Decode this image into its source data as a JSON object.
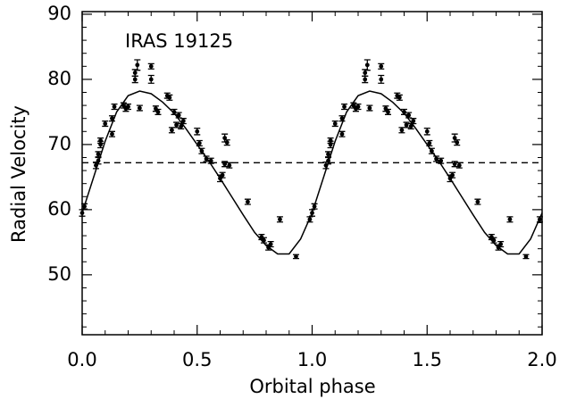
{
  "chart_data": {
    "type": "scatter",
    "annotation": "IRAS 19125",
    "xlabel": "Orbital phase",
    "ylabel": "Radial Velocity",
    "xlim": [
      0,
      2
    ],
    "ylim": [
      40.8,
      90.4
    ],
    "xticks": [
      {
        "value": 0,
        "label": "0.0"
      },
      {
        "value": 0.5,
        "label": "0.5"
      },
      {
        "value": 1,
        "label": "1.0"
      },
      {
        "value": 1.5,
        "label": "1.5"
      },
      {
        "value": 2,
        "label": "2.0"
      }
    ],
    "yticks": [
      50,
      60,
      70,
      80,
      90
    ],
    "xminorticks": [
      0.1,
      0.2,
      0.3,
      0.4,
      0.6,
      0.7,
      0.8,
      0.9,
      1.1,
      1.2,
      1.3,
      1.4,
      1.6,
      1.7,
      1.8,
      1.9
    ],
    "yminorticks": [
      42,
      44,
      46,
      48,
      52,
      54,
      56,
      58,
      62,
      64,
      66,
      68,
      72,
      74,
      76,
      78,
      82,
      84,
      86,
      88
    ],
    "color": "#000000",
    "hline": 67.2,
    "x": [
      0.0,
      0.01,
      0.06,
      0.07,
      0.07,
      0.08,
      0.08,
      0.1,
      0.13,
      0.13,
      0.14,
      0.18,
      0.19,
      0.2,
      0.23,
      0.23,
      0.24,
      0.25,
      0.3,
      0.3,
      0.32,
      0.33,
      0.37,
      0.38,
      0.39,
      0.4,
      0.41,
      0.42,
      0.43,
      0.44,
      0.5,
      0.51,
      0.52,
      0.54,
      0.56,
      0.6,
      0.61,
      0.62,
      0.63,
      0.62,
      0.64,
      0.72,
      0.78,
      0.79,
      0.81,
      0.82,
      0.86,
      0.93,
      0.99,
      1.0,
      1.01,
      1.06,
      1.07,
      1.07,
      1.08,
      1.08,
      1.1,
      1.13,
      1.13,
      1.14,
      1.18,
      1.19,
      1.2,
      1.23,
      1.23,
      1.24,
      1.25,
      1.3,
      1.3,
      1.32,
      1.33,
      1.37,
      1.38,
      1.39,
      1.4,
      1.41,
      1.42,
      1.43,
      1.44,
      1.5,
      1.51,
      1.52,
      1.54,
      1.56,
      1.6,
      1.61,
      1.62,
      1.63,
      1.62,
      1.64,
      1.72,
      1.78,
      1.79,
      1.81,
      1.82,
      1.86,
      1.93,
      1.99
    ],
    "values": [
      59.5,
      60.5,
      66.8,
      67.5,
      68.5,
      70.0,
      70.6,
      73.2,
      71.6,
      74.0,
      75.8,
      76.0,
      75.5,
      75.8,
      80.0,
      81.0,
      82.2,
      75.6,
      82.0,
      80.0,
      75.5,
      75.0,
      77.5,
      77.2,
      72.2,
      75.0,
      73.0,
      74.5,
      72.8,
      73.6,
      72.0,
      70.2,
      69.0,
      67.8,
      67.5,
      64.8,
      65.3,
      71.0,
      70.3,
      67.0,
      66.8,
      61.2,
      55.8,
      55.3,
      54.2,
      54.7,
      58.5,
      52.8,
      58.5,
      59.5,
      60.5,
      66.8,
      67.5,
      68.5,
      70.0,
      70.6,
      73.2,
      71.6,
      74.0,
      75.8,
      76.0,
      75.5,
      75.8,
      80.0,
      81.0,
      82.2,
      75.6,
      82.0,
      80.0,
      75.5,
      75.0,
      77.5,
      77.2,
      72.2,
      75.0,
      73.0,
      74.5,
      72.8,
      73.6,
      72.0,
      70.2,
      69.0,
      67.8,
      67.5,
      64.8,
      65.3,
      71.0,
      70.3,
      67.0,
      66.8,
      61.2,
      55.8,
      55.3,
      54.2,
      54.7,
      58.5,
      52.8,
      58.5
    ],
    "errors": [
      0.5,
      0.4,
      0.5,
      0.5,
      0.4,
      0.5,
      0.4,
      0.4,
      0.4,
      0.4,
      0.4,
      0.4,
      0.4,
      0.4,
      0.5,
      0.5,
      0.8,
      0.4,
      0.4,
      0.6,
      0.4,
      0.4,
      0.4,
      0.4,
      0.4,
      0.4,
      0.4,
      0.4,
      0.4,
      0.4,
      0.5,
      0.4,
      0.4,
      0.4,
      0.4,
      0.5,
      0.4,
      0.6,
      0.4,
      0.4,
      0.4,
      0.4,
      0.4,
      0.4,
      0.4,
      0.4,
      0.4,
      0.3,
      0.4,
      0.5,
      0.4,
      0.5,
      0.5,
      0.4,
      0.5,
      0.4,
      0.4,
      0.4,
      0.4,
      0.4,
      0.4,
      0.4,
      0.4,
      0.5,
      0.5,
      0.8,
      0.4,
      0.4,
      0.6,
      0.4,
      0.4,
      0.4,
      0.4,
      0.4,
      0.4,
      0.4,
      0.4,
      0.4,
      0.4,
      0.5,
      0.4,
      0.4,
      0.4,
      0.4,
      0.5,
      0.4,
      0.6,
      0.4,
      0.4,
      0.4,
      0.4,
      0.4,
      0.4,
      0.4,
      0.4,
      0.4,
      0.3,
      0.4
    ],
    "fit": {
      "x": [
        0,
        0.05,
        0.1,
        0.15,
        0.2,
        0.25,
        0.3,
        0.35,
        0.4,
        0.45,
        0.5,
        0.55,
        0.6,
        0.65,
        0.7,
        0.75,
        0.8,
        0.85,
        0.9,
        0.95,
        1.0,
        1.05,
        1.1,
        1.15,
        1.2,
        1.25,
        1.3,
        1.35,
        1.4,
        1.45,
        1.5,
        1.55,
        1.6,
        1.65,
        1.7,
        1.75,
        1.8,
        1.85,
        1.9,
        1.95,
        2.0
      ],
      "values": [
        59.5,
        65,
        70.5,
        75,
        77.5,
        78.2,
        77.8,
        76.5,
        74.8,
        72.5,
        70,
        67.5,
        64.8,
        62,
        59.2,
        56.5,
        54.5,
        53.2,
        53.2,
        55.5,
        59.5,
        65,
        70.5,
        75,
        77.5,
        78.2,
        77.8,
        76.5,
        74.8,
        72.5,
        70,
        67.5,
        64.8,
        62,
        59.2,
        56.5,
        54.5,
        53.2,
        53.2,
        55.5,
        59.5
      ]
    }
  }
}
